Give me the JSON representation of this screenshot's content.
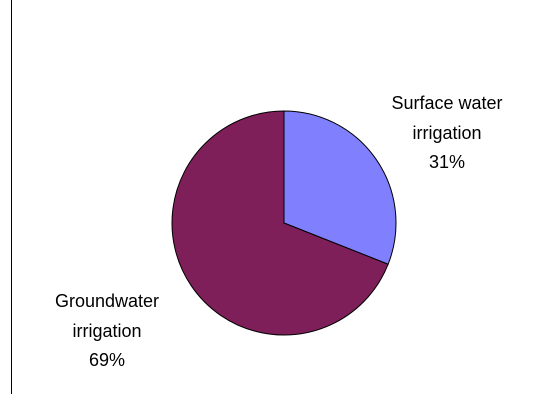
{
  "chart_data": {
    "type": "pie",
    "title": "",
    "slices": [
      {
        "label_lines": [
          "Surface water",
          "irrigation"
        ],
        "percent_label": "31%",
        "value": 31,
        "color": "#8080FF"
      },
      {
        "label_lines": [
          "Groundwater",
          "irrigation"
        ],
        "percent_label": "69%",
        "value": 69,
        "color": "#7F1F5A"
      }
    ],
    "start_angle_deg": 0,
    "direction": "clockwise",
    "legend": "none",
    "data_labels": "outside"
  }
}
